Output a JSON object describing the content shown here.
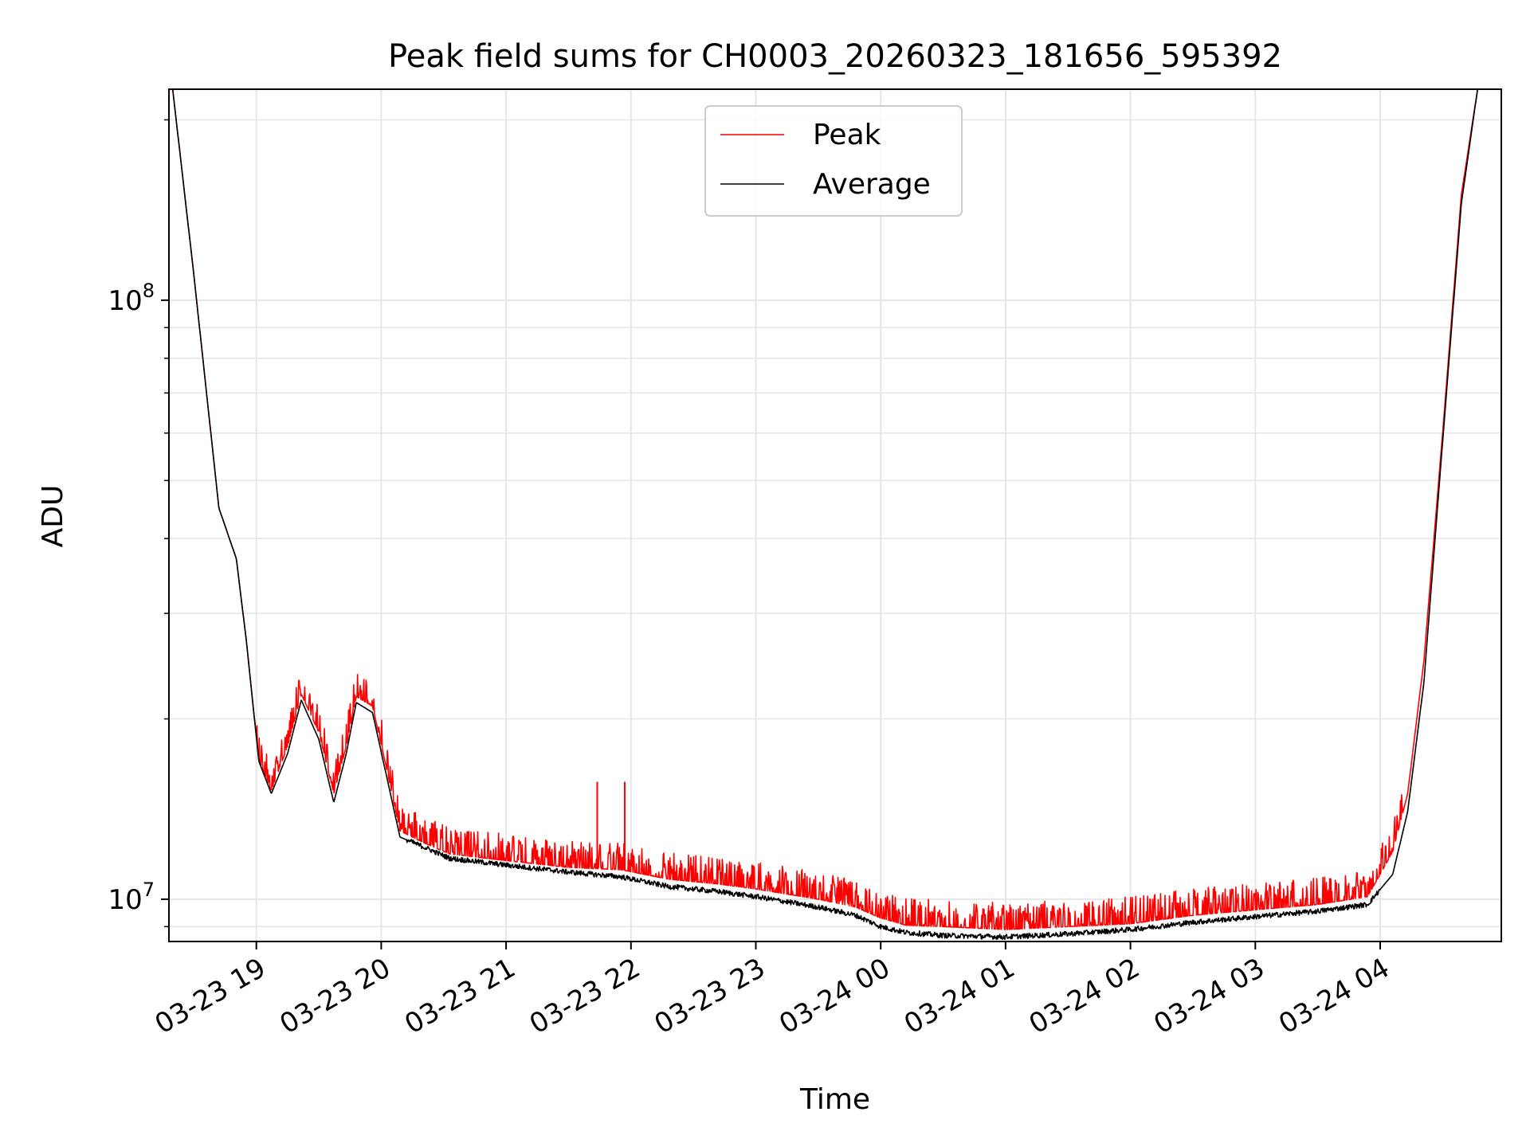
{
  "chart_data": {
    "type": "line",
    "title": "Peak field sums for CH0003_20260323_181656_595392",
    "xlabel": "Time",
    "ylabel": "ADU",
    "yscale": "log",
    "ylim": [
      8500000,
      225000000
    ],
    "xlim_hours": [
      18.3,
      28.97
    ],
    "x_unit": "hours since 2026-03-23 00:00",
    "xticks": [
      {
        "hour": 19,
        "label": "03-23 19"
      },
      {
        "hour": 20,
        "label": "03-23 20"
      },
      {
        "hour": 21,
        "label": "03-23 21"
      },
      {
        "hour": 22,
        "label": "03-23 22"
      },
      {
        "hour": 23,
        "label": "03-23 23"
      },
      {
        "hour": 24,
        "label": "03-24 00"
      },
      {
        "hour": 25,
        "label": "03-24 01"
      },
      {
        "hour": 26,
        "label": "03-24 02"
      },
      {
        "hour": 27,
        "label": "03-24 03"
      },
      {
        "hour": 28,
        "label": "03-24 04"
      }
    ],
    "yticks_major": [
      {
        "value": 10000000,
        "base": "10",
        "exp": "7"
      },
      {
        "value": 100000000,
        "base": "10",
        "exp": "8"
      }
    ],
    "grid": true,
    "legend_position": "upper-center",
    "series": [
      {
        "name": "Peak",
        "color": "#ff0000",
        "noise": true,
        "points": [
          [
            18.33,
            225000000
          ],
          [
            18.5,
            110000000
          ],
          [
            18.7,
            45000000
          ],
          [
            18.84,
            37000000
          ],
          [
            18.92,
            27000000
          ],
          [
            19.02,
            17000000
          ],
          [
            19.12,
            15200000
          ],
          [
            19.25,
            18000000
          ],
          [
            19.36,
            22000000
          ],
          [
            19.5,
            19000000
          ],
          [
            19.62,
            15000000
          ],
          [
            19.72,
            18000000
          ],
          [
            19.8,
            21800000
          ],
          [
            19.93,
            21000000
          ],
          [
            20.03,
            17000000
          ],
          [
            20.15,
            13000000
          ],
          [
            20.35,
            12400000
          ],
          [
            20.55,
            11900000
          ],
          [
            21.0,
            11600000
          ],
          [
            21.5,
            11300000
          ],
          [
            21.92,
            11200000
          ],
          [
            22.3,
            10800000
          ],
          [
            22.7,
            10600000
          ],
          [
            23.0,
            10400000
          ],
          [
            23.5,
            10000000
          ],
          [
            23.8,
            9700000
          ],
          [
            24.0,
            9300000
          ],
          [
            24.2,
            9050000
          ],
          [
            24.5,
            9000000
          ],
          [
            25.0,
            8900000
          ],
          [
            25.5,
            9000000
          ],
          [
            26.0,
            9100000
          ],
          [
            26.5,
            9400000
          ],
          [
            27.0,
            9600000
          ],
          [
            27.5,
            9800000
          ],
          [
            27.9,
            10100000
          ],
          [
            28.1,
            12000000
          ],
          [
            28.22,
            15000000
          ],
          [
            28.35,
            25000000
          ],
          [
            28.5,
            60000000
          ],
          [
            28.65,
            150000000
          ],
          [
            28.78,
            225000000
          ]
        ]
      },
      {
        "name": "Average",
        "color": "#000000",
        "noise": false,
        "points": [
          [
            18.33,
            225000000
          ],
          [
            18.5,
            110000000
          ],
          [
            18.7,
            45000000
          ],
          [
            18.84,
            37000000
          ],
          [
            18.92,
            27000000
          ],
          [
            19.02,
            17000000
          ],
          [
            19.12,
            15000000
          ],
          [
            19.25,
            17500000
          ],
          [
            19.36,
            21500000
          ],
          [
            19.5,
            18500000
          ],
          [
            19.62,
            14500000
          ],
          [
            19.72,
            17500000
          ],
          [
            19.8,
            21300000
          ],
          [
            19.93,
            20500000
          ],
          [
            20.03,
            16500000
          ],
          [
            20.15,
            12700000
          ],
          [
            20.35,
            12200000
          ],
          [
            20.55,
            11700000
          ],
          [
            21.0,
            11400000
          ],
          [
            21.5,
            11100000
          ],
          [
            21.92,
            10900000
          ],
          [
            22.3,
            10500000
          ],
          [
            22.7,
            10300000
          ],
          [
            23.0,
            10100000
          ],
          [
            23.5,
            9700000
          ],
          [
            23.8,
            9400000
          ],
          [
            24.0,
            9000000
          ],
          [
            24.2,
            8800000
          ],
          [
            24.5,
            8700000
          ],
          [
            25.0,
            8650000
          ],
          [
            25.5,
            8750000
          ],
          [
            26.0,
            8900000
          ],
          [
            26.5,
            9150000
          ],
          [
            27.0,
            9350000
          ],
          [
            27.5,
            9550000
          ],
          [
            27.9,
            9800000
          ],
          [
            28.1,
            11000000
          ],
          [
            28.22,
            14000000
          ],
          [
            28.35,
            23000000
          ],
          [
            28.5,
            58000000
          ],
          [
            28.65,
            145000000
          ],
          [
            28.78,
            225000000
          ]
        ]
      }
    ],
    "spikes": [
      {
        "series": "Peak",
        "hour": 21.73,
        "value": 15700000
      },
      {
        "series": "Peak",
        "hour": 21.95,
        "value": 15700000
      }
    ]
  }
}
